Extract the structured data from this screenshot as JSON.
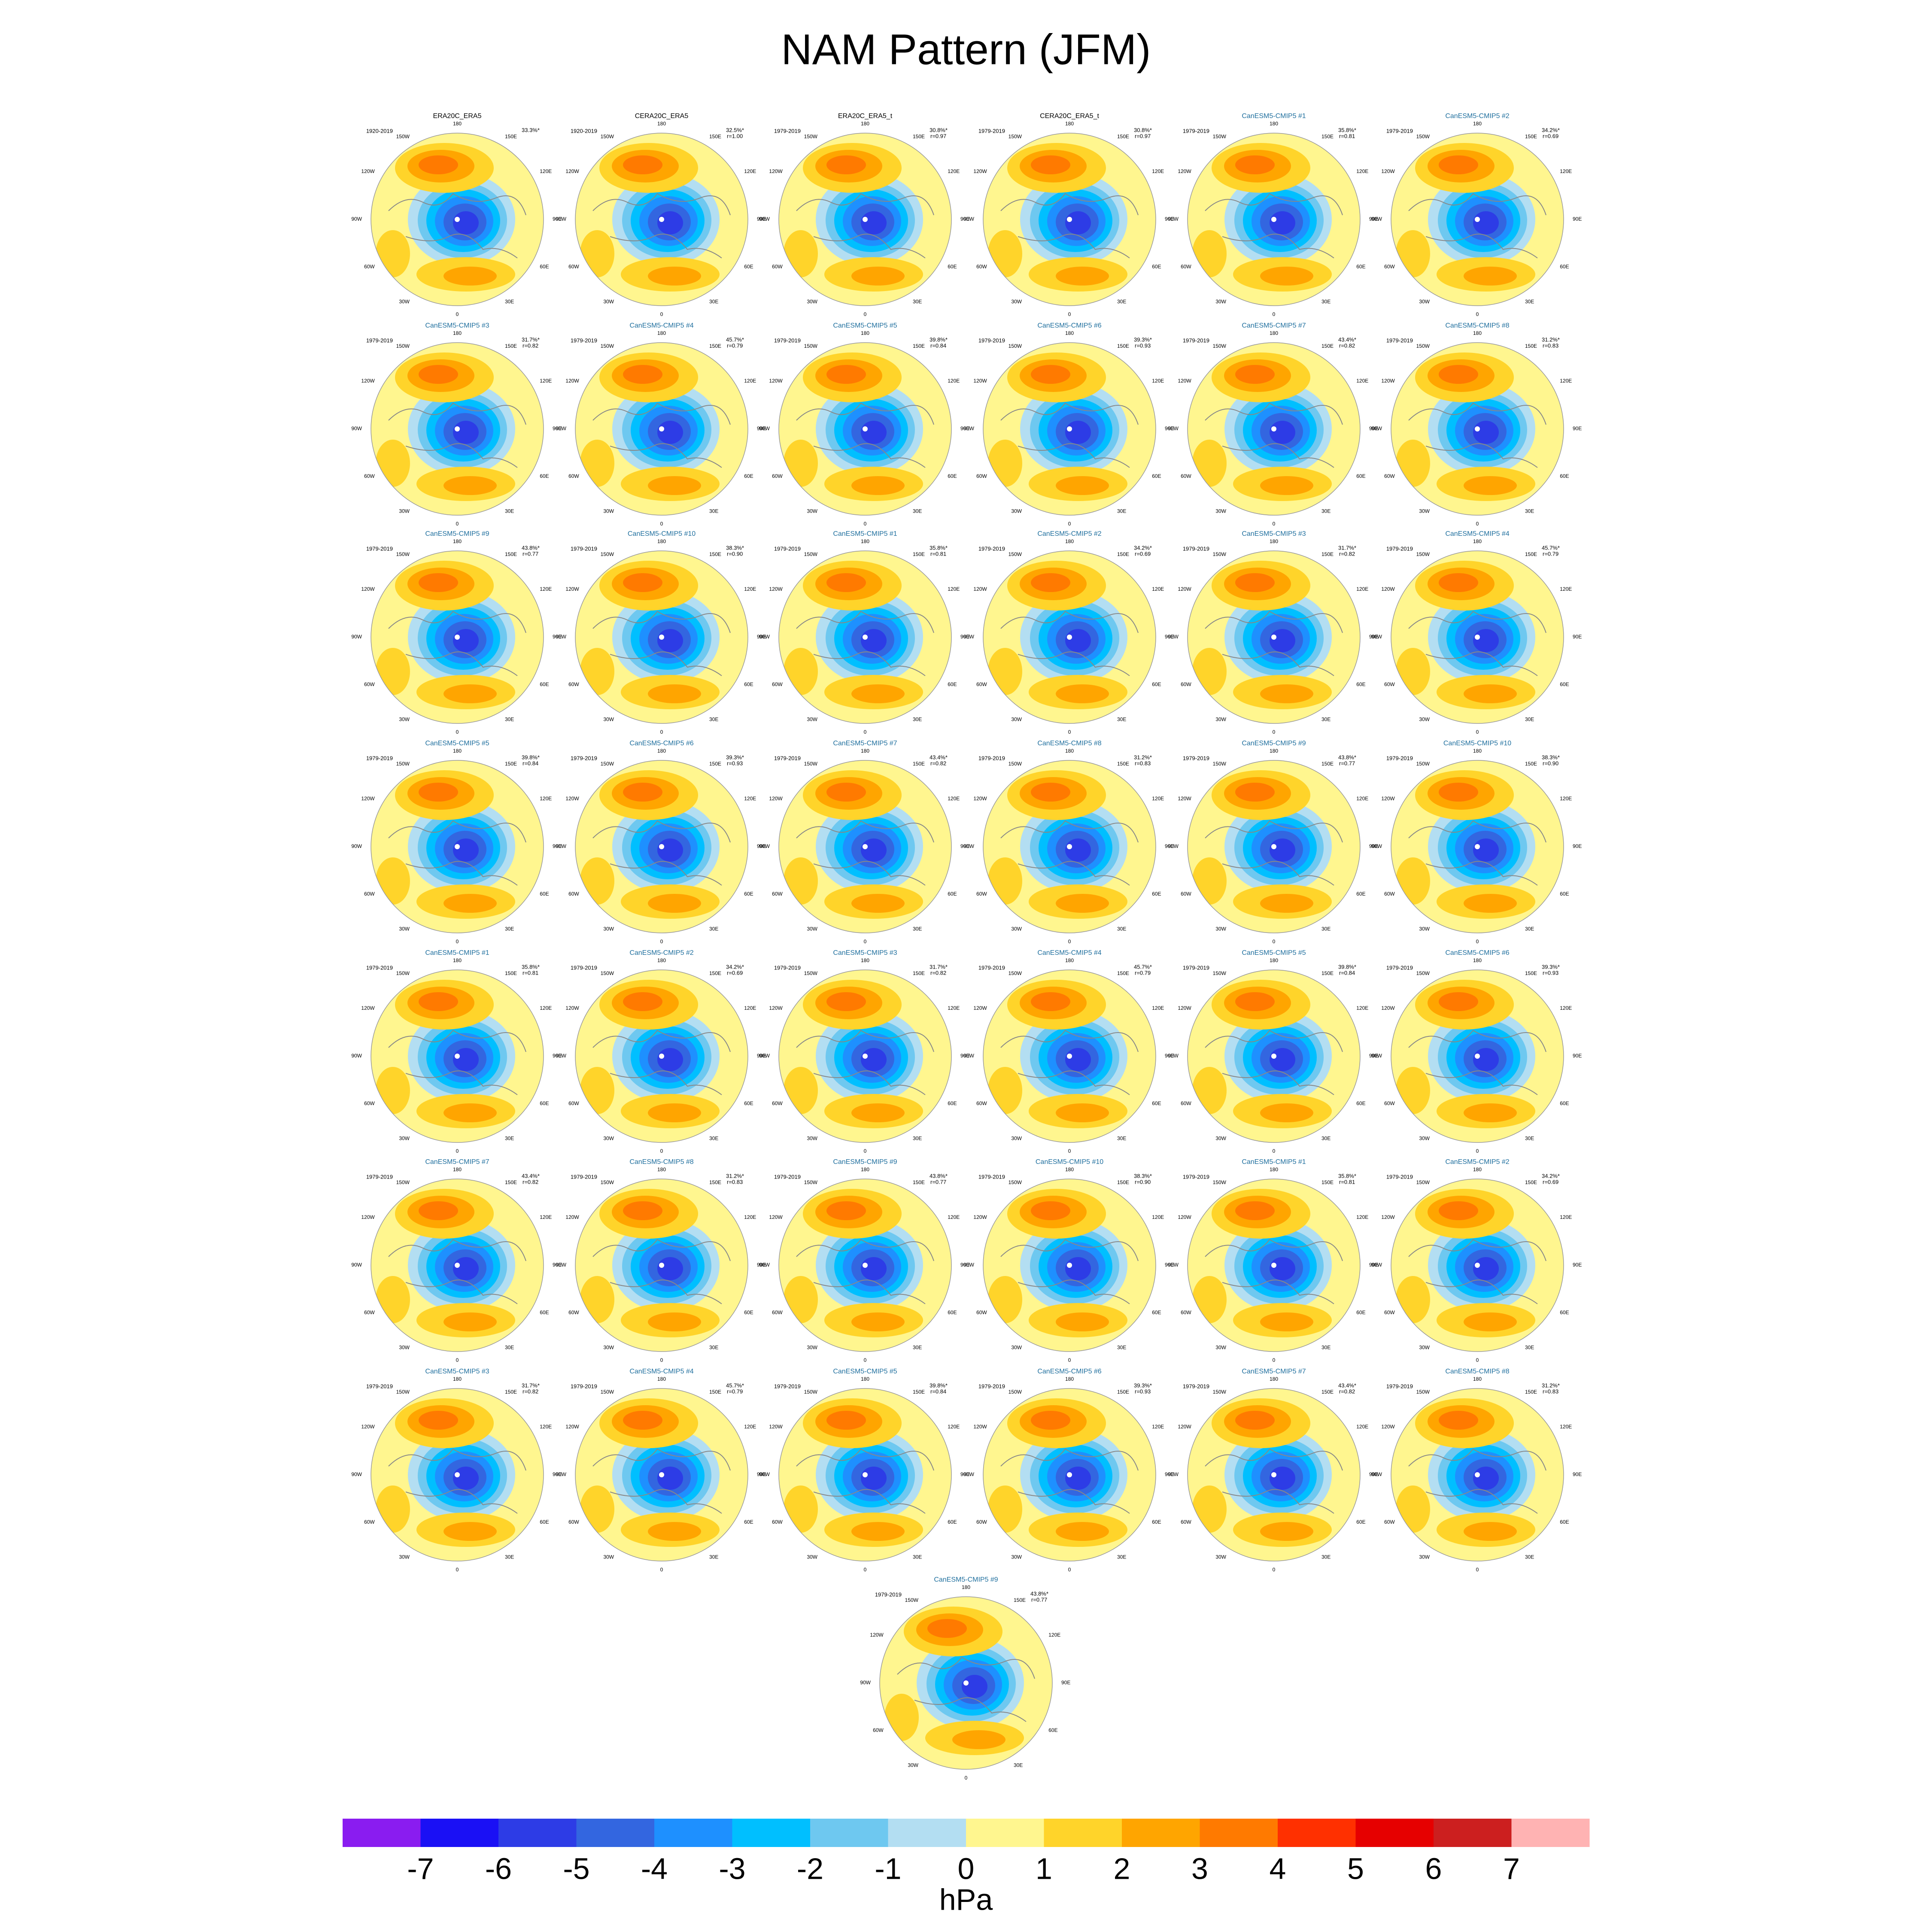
{
  "title": "NAM Pattern (JFM)",
  "panels": [
    {
      "title": "ERA20C_ERA5",
      "period": "1920-2019",
      "variance": "33.3%*"
    },
    {
      "title": "CERA20C_ERA5",
      "period": "1920-2019",
      "variance": "32.5%*",
      "corr": "r=1.00"
    },
    {
      "title": "ERA20C_ERA5_t",
      "period": "1979-2019",
      "variance": "30.8%*",
      "corr": "r=0.97"
    },
    {
      "title": "CERA20C_ERA5_t",
      "period": "1979-2019",
      "variance": "30.8%*",
      "corr": "r=0.97"
    },
    {
      "title": "CanESM5-CMIP5 #1",
      "period": "1979-2019",
      "variance": "35.8%*",
      "corr": "r=0.81"
    },
    {
      "title": "CanESM5-CMIP5 #2",
      "period": "1979-2019",
      "variance": "34.2%*",
      "corr": "r=0.69"
    },
    {
      "title": "CanESM5-CMIP5 #3",
      "period": "1979-2019",
      "variance": "31.7%*",
      "corr": "r=0.82"
    },
    {
      "title": "CanESM5-CMIP5 #4",
      "period": "1979-2019",
      "variance": "45.7%*",
      "corr": "r=0.79"
    },
    {
      "title": "CanESM5-CMIP5 #5",
      "period": "1979-2019",
      "variance": "39.8%*",
      "corr": "r=0.84"
    },
    {
      "title": "CanESM5-CMIP5 #6",
      "period": "1979-2019",
      "variance": "39.3%*",
      "corr": "r=0.93"
    },
    {
      "title": "CanESM5-CMIP5 #7",
      "period": "1979-2019",
      "variance": "43.4%*",
      "corr": "r=0.82"
    },
    {
      "title": "CanESM5-CMIP5 #8",
      "period": "1979-2019",
      "variance": "31.2%*",
      "corr": "r=0.83"
    },
    {
      "title": "CanESM5-CMIP5 #9",
      "period": "1979-2019",
      "variance": "43.8%*",
      "corr": "r=0.77"
    },
    {
      "title": "CanESM5-CMIP5 #10",
      "period": "1979-2019",
      "variance": "38.3%*",
      "corr": "r=0.90"
    },
    {
      "title": "CanESM5-CMIP5 #1",
      "period": "1979-2019",
      "variance": "35.8%*",
      "corr": "r=0.81"
    },
    {
      "title": "CanESM5-CMIP5 #2",
      "period": "1979-2019",
      "variance": "34.2%*",
      "corr": "r=0.69"
    },
    {
      "title": "CanESM5-CMIP5 #3",
      "period": "1979-2019",
      "variance": "31.7%*",
      "corr": "r=0.82"
    },
    {
      "title": "CanESM5-CMIP5 #4",
      "period": "1979-2019",
      "variance": "45.7%*",
      "corr": "r=0.79"
    },
    {
      "title": "CanESM5-CMIP5 #5",
      "period": "1979-2019",
      "variance": "39.8%*",
      "corr": "r=0.84"
    },
    {
      "title": "CanESM5-CMIP5 #6",
      "period": "1979-2019",
      "variance": "39.3%*",
      "corr": "r=0.93"
    },
    {
      "title": "CanESM5-CMIP5 #7",
      "period": "1979-2019",
      "variance": "43.4%*",
      "corr": "r=0.82"
    },
    {
      "title": "CanESM5-CMIP5 #8",
      "period": "1979-2019",
      "variance": "31.2%*",
      "corr": "r=0.83"
    },
    {
      "title": "CanESM5-CMIP5 #9",
      "period": "1979-2019",
      "variance": "43.8%*",
      "corr": "r=0.77"
    },
    {
      "title": "CanESM5-CMIP5 #10",
      "period": "1979-2019",
      "variance": "38.3%*",
      "corr": "r=0.90"
    },
    {
      "title": "CanESM5-CMIP5 #1",
      "period": "1979-2019",
      "variance": "35.8%*",
      "corr": "r=0.81"
    },
    {
      "title": "CanESM5-CMIP5 #2",
      "period": "1979-2019",
      "variance": "34.2%*",
      "corr": "r=0.69"
    },
    {
      "title": "CanESM5-CMIP5 #3",
      "period": "1979-2019",
      "variance": "31.7%*",
      "corr": "r=0.82"
    },
    {
      "title": "CanESM5-CMIP5 #4",
      "period": "1979-2019",
      "variance": "45.7%*",
      "corr": "r=0.79"
    },
    {
      "title": "CanESM5-CMIP5 #5",
      "period": "1979-2019",
      "variance": "39.8%*",
      "corr": "r=0.84"
    },
    {
      "title": "CanESM5-CMIP5 #6",
      "period": "1979-2019",
      "variance": "39.3%*",
      "corr": "r=0.93"
    },
    {
      "title": "CanESM5-CMIP5 #7",
      "period": "1979-2019",
      "variance": "43.4%*",
      "corr": "r=0.82"
    },
    {
      "title": "CanESM5-CMIP5 #8",
      "period": "1979-2019",
      "variance": "31.2%*",
      "corr": "r=0.83"
    },
    {
      "title": "CanESM5-CMIP5 #9",
      "period": "1979-2019",
      "variance": "43.8%*",
      "corr": "r=0.77"
    },
    {
      "title": "CanESM5-CMIP5 #10",
      "period": "1979-2019",
      "variance": "38.3%*",
      "corr": "r=0.90"
    },
    {
      "title": "CanESM5-CMIP5 #1",
      "period": "1979-2019",
      "variance": "35.8%*",
      "corr": "r=0.81"
    },
    {
      "title": "CanESM5-CMIP5 #2",
      "period": "1979-2019",
      "variance": "34.2%*",
      "corr": "r=0.69"
    },
    {
      "title": "CanESM5-CMIP5 #3",
      "period": "1979-2019",
      "variance": "31.7%*",
      "corr": "r=0.82"
    },
    {
      "title": "CanESM5-CMIP5 #4",
      "period": "1979-2019",
      "variance": "45.7%*",
      "corr": "r=0.79"
    },
    {
      "title": "CanESM5-CMIP5 #5",
      "period": "1979-2019",
      "variance": "39.8%*",
      "corr": "r=0.84"
    },
    {
      "title": "CanESM5-CMIP5 #6",
      "period": "1979-2019",
      "variance": "39.3%*",
      "corr": "r=0.93"
    },
    {
      "title": "CanESM5-CMIP5 #7",
      "period": "1979-2019",
      "variance": "43.4%*",
      "corr": "r=0.82"
    },
    {
      "title": "CanESM5-CMIP5 #8",
      "period": "1979-2019",
      "variance": "31.2%*",
      "corr": "r=0.83"
    },
    {
      "title": "CanESM5-CMIP5 #9",
      "period": "1979-2019",
      "variance": "43.8%*",
      "corr": "r=0.77"
    }
  ],
  "lon_labels": [
    "180",
    "150E",
    "120E",
    "90E",
    "60E",
    "30E",
    "0",
    "30W",
    "60W",
    "90W",
    "120W",
    "150W"
  ],
  "colorbar": {
    "colors": [
      "#8a1cf0",
      "#1a10f5",
      "#2d3ce6",
      "#3366e0",
      "#1e90ff",
      "#00bfff",
      "#6ec8f0",
      "#b3def2",
      "#fff68f",
      "#ffd42a",
      "#ffa500",
      "#ff7a00",
      "#ff3000",
      "#e60000",
      "#cc1f1f",
      "#ffb3b3"
    ],
    "ticks": [
      -7,
      -6,
      -5,
      -4,
      -3,
      -2,
      -1,
      0,
      1,
      2,
      3,
      4,
      5,
      6,
      7
    ],
    "label": "hPa"
  }
}
